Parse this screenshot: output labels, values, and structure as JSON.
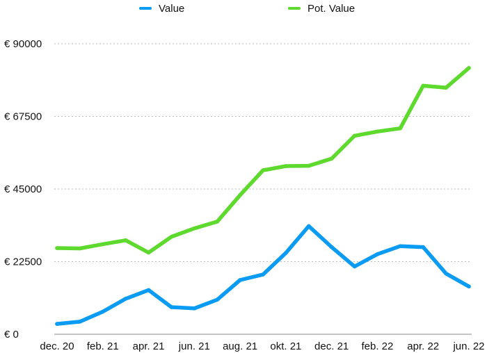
{
  "chart_data": {
    "type": "line",
    "title": "",
    "xlabel": "",
    "ylabel": "",
    "ylim": [
      0,
      90000
    ],
    "yticks": [
      "€ 0",
      "€ 22500",
      "€ 45000",
      "€ 67500",
      "€ 90000"
    ],
    "ytick_values": [
      0,
      22500,
      45000,
      67500,
      90000
    ],
    "x": [
      "dec. 20",
      "jan. 21",
      "feb. 21",
      "mar. 21",
      "apr. 21",
      "mai 21",
      "jun. 21",
      "jul. 21",
      "aug. 21",
      "sep. 21",
      "okt. 21",
      "nov. 21",
      "dec. 21",
      "jan. 22",
      "feb. 22",
      "mar. 22",
      "apr. 22",
      "mai 22",
      "jun. 22"
    ],
    "xtick_labels": [
      "dec. 20",
      "feb. 21",
      "apr. 21",
      "jun. 21",
      "aug. 21",
      "okt. 21",
      "dec. 21",
      "feb. 22",
      "apr. 22",
      "jun. 22"
    ],
    "grid": true,
    "legend": "top-center",
    "series": [
      {
        "name": "Value",
        "color": "#0a9cf5",
        "values": [
          3200,
          3900,
          7000,
          11000,
          13700,
          8400,
          8000,
          10700,
          16800,
          18500,
          25200,
          33500,
          27000,
          21000,
          24800,
          27300,
          27000,
          18800,
          14800
        ]
      },
      {
        "name": "Pot. Value",
        "color": "#5ed92d",
        "values": [
          26700,
          26600,
          27900,
          29100,
          25300,
          30200,
          32800,
          34900,
          43100,
          50800,
          52100,
          52200,
          54400,
          61500,
          62800,
          63800,
          77000,
          76400,
          82500
        ]
      }
    ]
  }
}
